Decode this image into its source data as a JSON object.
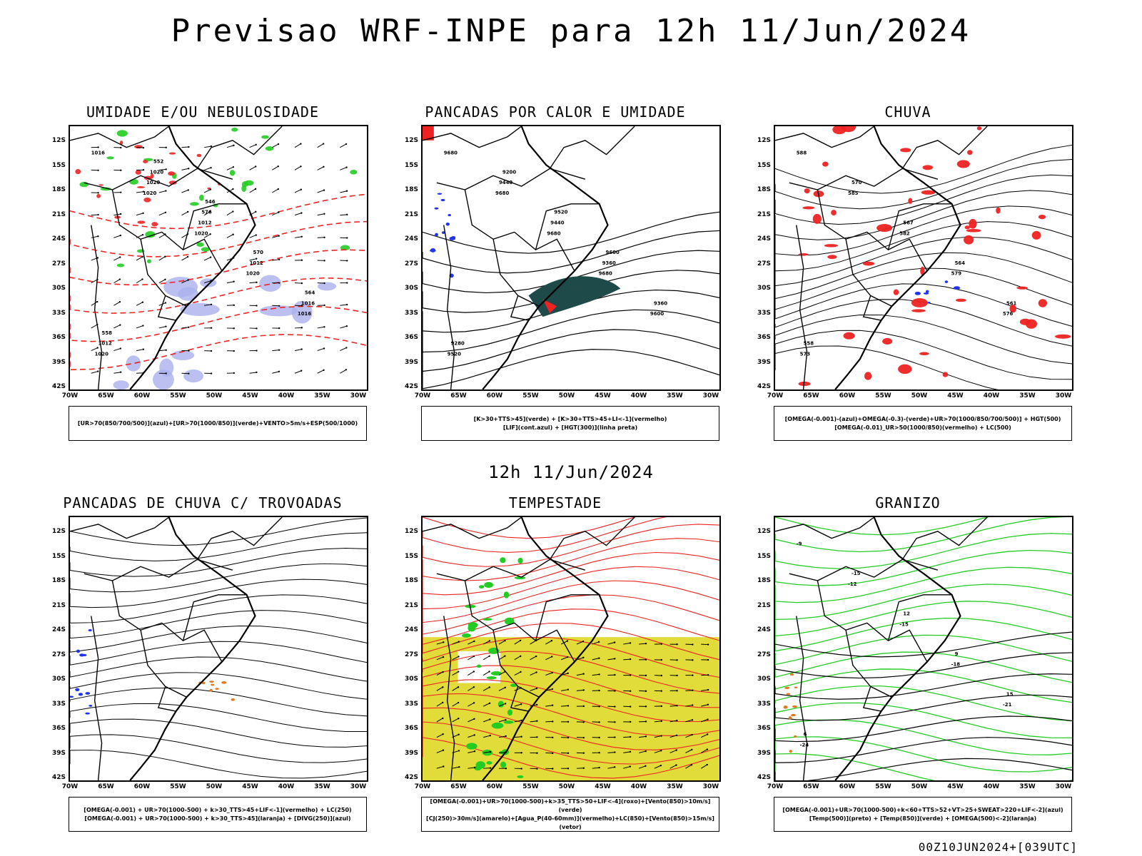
{
  "title": "Previsao WRF-INPE  para 12h 11/Jun/2024",
  "subtitle": "12h 11/Jun/2024",
  "footer": "00Z10JUN2024+[039UTC]",
  "lat_labels": [
    "12S",
    "15S",
    "18S",
    "21S",
    "24S",
    "27S",
    "30S",
    "33S",
    "36S",
    "39S",
    "42S"
  ],
  "lon_labels": [
    "70W",
    "65W",
    "60W",
    "55W",
    "50W",
    "45W",
    "40W",
    "35W",
    "30W"
  ],
  "panels": [
    {
      "title": "UMIDADE E/OU NEBULOSIDADE",
      "legend": [
        "[UR>70(850/700/500)](azul)+[UR>70(1000/850)](verde)+VENTO>5m/s+ESP(500/1000)"
      ],
      "labels": [
        "1016",
        "1020",
        "1020",
        "1020",
        "1016",
        "1020",
        "1020",
        "1012",
        "1012",
        "1016",
        "1012",
        "1020",
        "576",
        "570",
        "564",
        "558",
        "552",
        "546"
      ]
    },
    {
      "title": "PANCADAS POR CALOR E UMIDADE",
      "legend": [
        "[K>30+TTS>45](verde) + [K>30+TTS>45+LI<-1](vermelho)",
        "[LIF](cont.azul) + [HGT(300)](linha preta)"
      ],
      "labels": [
        "9680",
        "9680",
        "9680",
        "9680",
        "9600",
        "9520",
        "9440",
        "9440",
        "9360",
        "9360",
        "9280",
        "9200",
        "9520",
        "9600"
      ]
    },
    {
      "title": "CHUVA",
      "legend": [
        "[OMEGA(-0.001)-(azul)+OMEGA(-0.3)-(verde)+UR>70(1000/850/700/500)] + HGT(500)",
        "[OMEGA(-0.01)_UR>50(1000/850)(vermelho) + LC(500)"
      ],
      "labels": [
        "588",
        "585",
        "582",
        "579",
        "576",
        "573",
        "570",
        "567",
        "564",
        "561",
        "558"
      ]
    },
    {
      "title": "PANCADAS DE CHUVA C/ TROVOADAS",
      "legend": [
        "[OMEGA(-0.001) + UR>70(1000-500) + k>30_TTS>45+LIF<-1](vermelho) + LC(250)",
        "[OMEGA(-0.001) + UR>70(1000-500) + k>30_TTS>45](laranja) + [DIVG(250)](azul)"
      ],
      "labels": []
    },
    {
      "title": "TEMPESTADE",
      "legend": [
        "[OMEGA(-0.001)+UR>70(1000-500)+k>35_TTS>50+LIF<-4](roxo)+[Vento(850)>10m/s](verde)",
        "[CJ(250)>30m/s](amarelo)+[Agua_P(40-60mm)](vermelho)+LC(850)+[Vento(850)>15m/s](vetor)"
      ],
      "labels": []
    },
    {
      "title": "GRANIZO",
      "legend": [
        "[OMEGA(-0.001)+UR>70(1000-500)+k<60+TTS>52+VT>25+SWEAT>220+LIF<-2](azul)",
        "[Temp(500)](preto) + [Temp(850)](verde) + [OMEGA(500)<-2](laranja)"
      ],
      "labels": [
        "-9",
        "-12",
        "-15",
        "-18",
        "-21",
        "-24",
        "-15",
        "12",
        "9",
        "15",
        "6"
      ]
    }
  ],
  "colors": {
    "black": "#000000",
    "red": "#ee2222",
    "green": "#22cc22",
    "blue": "#2233ee",
    "lavender": "#aab0ee",
    "teal": "#1e4a4a",
    "yellow": "#e2dc3a",
    "orange": "#e07a20"
  }
}
